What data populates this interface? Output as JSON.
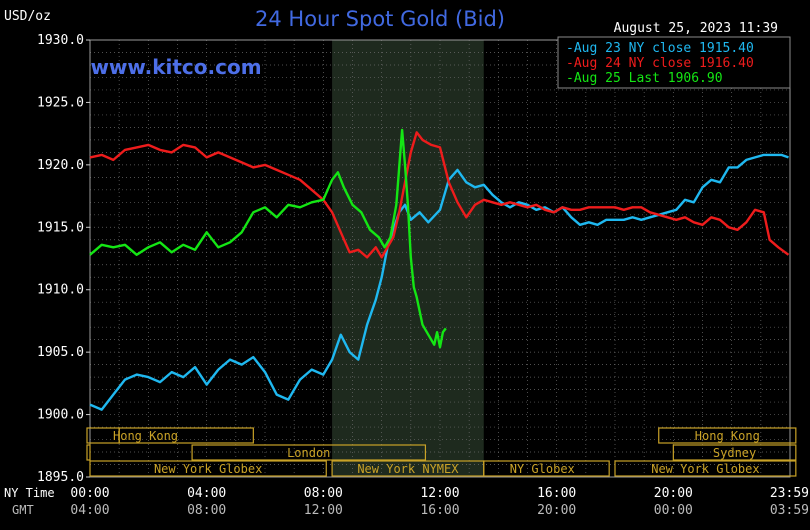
{
  "chart_data": {
    "type": "line",
    "title": "24 Hour Spot Gold (Bid)",
    "watermark": "www.kitco.com",
    "date_label": "August 25, 2023 11:39",
    "ylabel": "USD/oz",
    "ylim": [
      1895,
      1930
    ],
    "yticks": [
      "1930.0",
      "1925.0",
      "1920.0",
      "1915.0",
      "1910.0",
      "1905.0",
      "1900.0",
      "1895.0"
    ],
    "xlim_hours": [
      0,
      24
    ],
    "x_row1_label": "NY Time",
    "x_row2_label": "GMT",
    "xticks_ny": [
      "00:00",
      "04:00",
      "08:00",
      "12:00",
      "16:00",
      "20:00",
      "23:59"
    ],
    "xticks_gmt": [
      "04:00",
      "08:00",
      "12:00",
      "16:00",
      "20:00",
      "00:00",
      "03:59"
    ],
    "shaded_window_hours": [
      8.3,
      13.5
    ],
    "colors": {
      "background": "#000000",
      "grid": "#6b6b6b",
      "title": "#4169e1",
      "watermark": "#4d6fe8",
      "text": "#ffffff",
      "shade": "#1e2a1e",
      "session": "#c9a227"
    },
    "series": [
      {
        "name": "Aug 23 NY close",
        "legend": "Aug 23 NY close 1915.40",
        "color": "#1fb8f0",
        "points": [
          [
            0.0,
            1900.8
          ],
          [
            0.4,
            1900.4
          ],
          [
            0.8,
            1901.6
          ],
          [
            1.2,
            1902.8
          ],
          [
            1.6,
            1903.2
          ],
          [
            2.0,
            1903.0
          ],
          [
            2.4,
            1902.6
          ],
          [
            2.8,
            1903.4
          ],
          [
            3.2,
            1903.0
          ],
          [
            3.6,
            1903.8
          ],
          [
            4.0,
            1902.4
          ],
          [
            4.4,
            1903.6
          ],
          [
            4.8,
            1904.4
          ],
          [
            5.2,
            1904.0
          ],
          [
            5.6,
            1904.6
          ],
          [
            6.0,
            1903.4
          ],
          [
            6.4,
            1901.6
          ],
          [
            6.8,
            1901.2
          ],
          [
            7.2,
            1902.8
          ],
          [
            7.6,
            1903.6
          ],
          [
            8.0,
            1903.2
          ],
          [
            8.3,
            1904.4
          ],
          [
            8.6,
            1906.4
          ],
          [
            8.9,
            1905.0
          ],
          [
            9.2,
            1904.4
          ],
          [
            9.5,
            1907.2
          ],
          [
            9.8,
            1909.2
          ],
          [
            10.0,
            1911.0
          ],
          [
            10.2,
            1913.4
          ],
          [
            10.4,
            1914.8
          ],
          [
            10.6,
            1916.2
          ],
          [
            10.8,
            1916.8
          ],
          [
            11.0,
            1915.6
          ],
          [
            11.3,
            1916.2
          ],
          [
            11.6,
            1915.4
          ],
          [
            12.0,
            1916.4
          ],
          [
            12.3,
            1918.8
          ],
          [
            12.6,
            1919.6
          ],
          [
            12.9,
            1918.6
          ],
          [
            13.2,
            1918.2
          ],
          [
            13.5,
            1918.4
          ],
          [
            13.8,
            1917.6
          ],
          [
            14.1,
            1917.0
          ],
          [
            14.4,
            1916.6
          ],
          [
            14.7,
            1917.0
          ],
          [
            15.0,
            1916.8
          ],
          [
            15.3,
            1916.4
          ],
          [
            15.6,
            1916.6
          ],
          [
            15.9,
            1916.2
          ],
          [
            16.2,
            1916.6
          ],
          [
            16.5,
            1915.8
          ],
          [
            16.8,
            1915.2
          ],
          [
            17.1,
            1915.4
          ],
          [
            17.4,
            1915.2
          ],
          [
            17.7,
            1915.6
          ],
          [
            18.0,
            1915.6
          ],
          [
            18.3,
            1915.6
          ],
          [
            18.6,
            1915.8
          ],
          [
            18.9,
            1915.6
          ],
          [
            19.2,
            1915.8
          ],
          [
            19.5,
            1916.0
          ],
          [
            19.8,
            1916.2
          ],
          [
            20.1,
            1916.4
          ],
          [
            20.4,
            1917.2
          ],
          [
            20.7,
            1917.0
          ],
          [
            21.0,
            1918.2
          ],
          [
            21.3,
            1918.8
          ],
          [
            21.6,
            1918.6
          ],
          [
            21.9,
            1919.8
          ],
          [
            22.2,
            1919.8
          ],
          [
            22.5,
            1920.4
          ],
          [
            22.8,
            1920.6
          ],
          [
            23.1,
            1920.8
          ],
          [
            23.4,
            1920.8
          ],
          [
            23.7,
            1920.8
          ],
          [
            23.95,
            1920.6
          ]
        ]
      },
      {
        "name": "Aug 24 NY close",
        "legend": "Aug 24 NY close 1916.40",
        "color": "#ee1c1c",
        "points": [
          [
            0.0,
            1920.6
          ],
          [
            0.4,
            1920.8
          ],
          [
            0.8,
            1920.4
          ],
          [
            1.2,
            1921.2
          ],
          [
            1.6,
            1921.4
          ],
          [
            2.0,
            1921.6
          ],
          [
            2.4,
            1921.2
          ],
          [
            2.8,
            1921.0
          ],
          [
            3.2,
            1921.6
          ],
          [
            3.6,
            1921.4
          ],
          [
            4.0,
            1920.6
          ],
          [
            4.4,
            1921.0
          ],
          [
            4.8,
            1920.6
          ],
          [
            5.2,
            1920.2
          ],
          [
            5.6,
            1919.8
          ],
          [
            6.0,
            1920.0
          ],
          [
            6.4,
            1919.6
          ],
          [
            6.8,
            1919.2
          ],
          [
            7.2,
            1918.8
          ],
          [
            7.6,
            1918.0
          ],
          [
            8.0,
            1917.2
          ],
          [
            8.3,
            1916.2
          ],
          [
            8.6,
            1914.6
          ],
          [
            8.9,
            1913.0
          ],
          [
            9.2,
            1913.2
          ],
          [
            9.5,
            1912.6
          ],
          [
            9.8,
            1913.4
          ],
          [
            10.0,
            1912.6
          ],
          [
            10.2,
            1913.4
          ],
          [
            10.4,
            1914.2
          ],
          [
            10.6,
            1916.2
          ],
          [
            10.8,
            1918.6
          ],
          [
            11.0,
            1921.0
          ],
          [
            11.2,
            1922.6
          ],
          [
            11.4,
            1922.0
          ],
          [
            11.7,
            1921.6
          ],
          [
            12.0,
            1921.4
          ],
          [
            12.3,
            1918.6
          ],
          [
            12.6,
            1917.0
          ],
          [
            12.9,
            1915.8
          ],
          [
            13.2,
            1916.8
          ],
          [
            13.5,
            1917.2
          ],
          [
            13.8,
            1917.0
          ],
          [
            14.1,
            1916.8
          ],
          [
            14.4,
            1917.0
          ],
          [
            14.7,
            1916.8
          ],
          [
            15.0,
            1916.6
          ],
          [
            15.3,
            1916.8
          ],
          [
            15.6,
            1916.4
          ],
          [
            15.9,
            1916.2
          ],
          [
            16.2,
            1916.6
          ],
          [
            16.5,
            1916.4
          ],
          [
            16.8,
            1916.4
          ],
          [
            17.1,
            1916.6
          ],
          [
            17.4,
            1916.6
          ],
          [
            17.7,
            1916.6
          ],
          [
            18.0,
            1916.6
          ],
          [
            18.3,
            1916.4
          ],
          [
            18.6,
            1916.6
          ],
          [
            18.9,
            1916.6
          ],
          [
            19.2,
            1916.2
          ],
          [
            19.5,
            1916.0
          ],
          [
            19.8,
            1915.8
          ],
          [
            20.1,
            1915.6
          ],
          [
            20.4,
            1915.8
          ],
          [
            20.7,
            1915.4
          ],
          [
            21.0,
            1915.2
          ],
          [
            21.3,
            1915.8
          ],
          [
            21.6,
            1915.6
          ],
          [
            21.9,
            1915.0
          ],
          [
            22.2,
            1914.8
          ],
          [
            22.5,
            1915.4
          ],
          [
            22.8,
            1916.4
          ],
          [
            23.1,
            1916.2
          ],
          [
            23.3,
            1914.0
          ],
          [
            23.6,
            1913.4
          ],
          [
            23.95,
            1912.8
          ]
        ]
      },
      {
        "name": "Aug 25 Last",
        "legend": "Aug 25 Last 1906.90",
        "color": "#14e614",
        "points": [
          [
            0.0,
            1912.8
          ],
          [
            0.4,
            1913.6
          ],
          [
            0.8,
            1913.4
          ],
          [
            1.2,
            1913.6
          ],
          [
            1.6,
            1912.8
          ],
          [
            2.0,
            1913.4
          ],
          [
            2.4,
            1913.8
          ],
          [
            2.8,
            1913.0
          ],
          [
            3.2,
            1913.6
          ],
          [
            3.6,
            1913.2
          ],
          [
            4.0,
            1914.6
          ],
          [
            4.4,
            1913.4
          ],
          [
            4.8,
            1913.8
          ],
          [
            5.2,
            1914.6
          ],
          [
            5.6,
            1916.2
          ],
          [
            6.0,
            1916.6
          ],
          [
            6.4,
            1915.8
          ],
          [
            6.8,
            1916.8
          ],
          [
            7.2,
            1916.6
          ],
          [
            7.6,
            1917.0
          ],
          [
            8.0,
            1917.2
          ],
          [
            8.3,
            1918.8
          ],
          [
            8.5,
            1919.4
          ],
          [
            8.7,
            1918.2
          ],
          [
            9.0,
            1916.8
          ],
          [
            9.3,
            1916.2
          ],
          [
            9.6,
            1914.8
          ],
          [
            9.9,
            1914.2
          ],
          [
            10.1,
            1913.4
          ],
          [
            10.3,
            1914.2
          ],
          [
            10.5,
            1916.8
          ],
          [
            10.6,
            1919.8
          ],
          [
            10.7,
            1922.8
          ],
          [
            10.8,
            1920.0
          ],
          [
            10.9,
            1916.8
          ],
          [
            11.0,
            1912.6
          ],
          [
            11.1,
            1910.2
          ],
          [
            11.2,
            1909.4
          ],
          [
            11.4,
            1907.2
          ],
          [
            11.6,
            1906.4
          ],
          [
            11.8,
            1905.6
          ],
          [
            11.9,
            1906.6
          ],
          [
            12.0,
            1905.4
          ],
          [
            12.1,
            1906.6
          ],
          [
            12.2,
            1906.9
          ]
        ]
      }
    ],
    "sessions": [
      {
        "label": "Hong Kong",
        "row": 0,
        "start": -0.2,
        "end": 1.0,
        "text_align": "left"
      },
      {
        "label": "",
        "row": 0,
        "start": 1.0,
        "end": 5.6,
        "text_align": "left"
      },
      {
        "label": "Hong Kong",
        "row": 0,
        "start": 19.5,
        "end": 24.2,
        "text_align": "center"
      },
      {
        "label": "",
        "row": 1,
        "start": -0.2,
        "end": 0.0,
        "text_align": "left"
      },
      {
        "label": "London",
        "row": 1,
        "start": 3.5,
        "end": 11.5,
        "text_align": "center"
      },
      {
        "label": "Sydney",
        "row": 1,
        "start": 20.0,
        "end": 24.2,
        "text_align": "center"
      },
      {
        "label": "New York Globex",
        "row": 2,
        "start": 0.0,
        "end": 8.1,
        "text_align": "center"
      },
      {
        "label": "New York NYMEX",
        "row": 2,
        "start": 8.3,
        "end": 13.5,
        "text_align": "center"
      },
      {
        "label": "NY Globex",
        "row": 2,
        "start": 13.5,
        "end": 17.8,
        "text_align": "left"
      },
      {
        "label": "New York Globex",
        "row": 2,
        "start": 18.0,
        "end": 24.2,
        "text_align": "center"
      }
    ]
  }
}
